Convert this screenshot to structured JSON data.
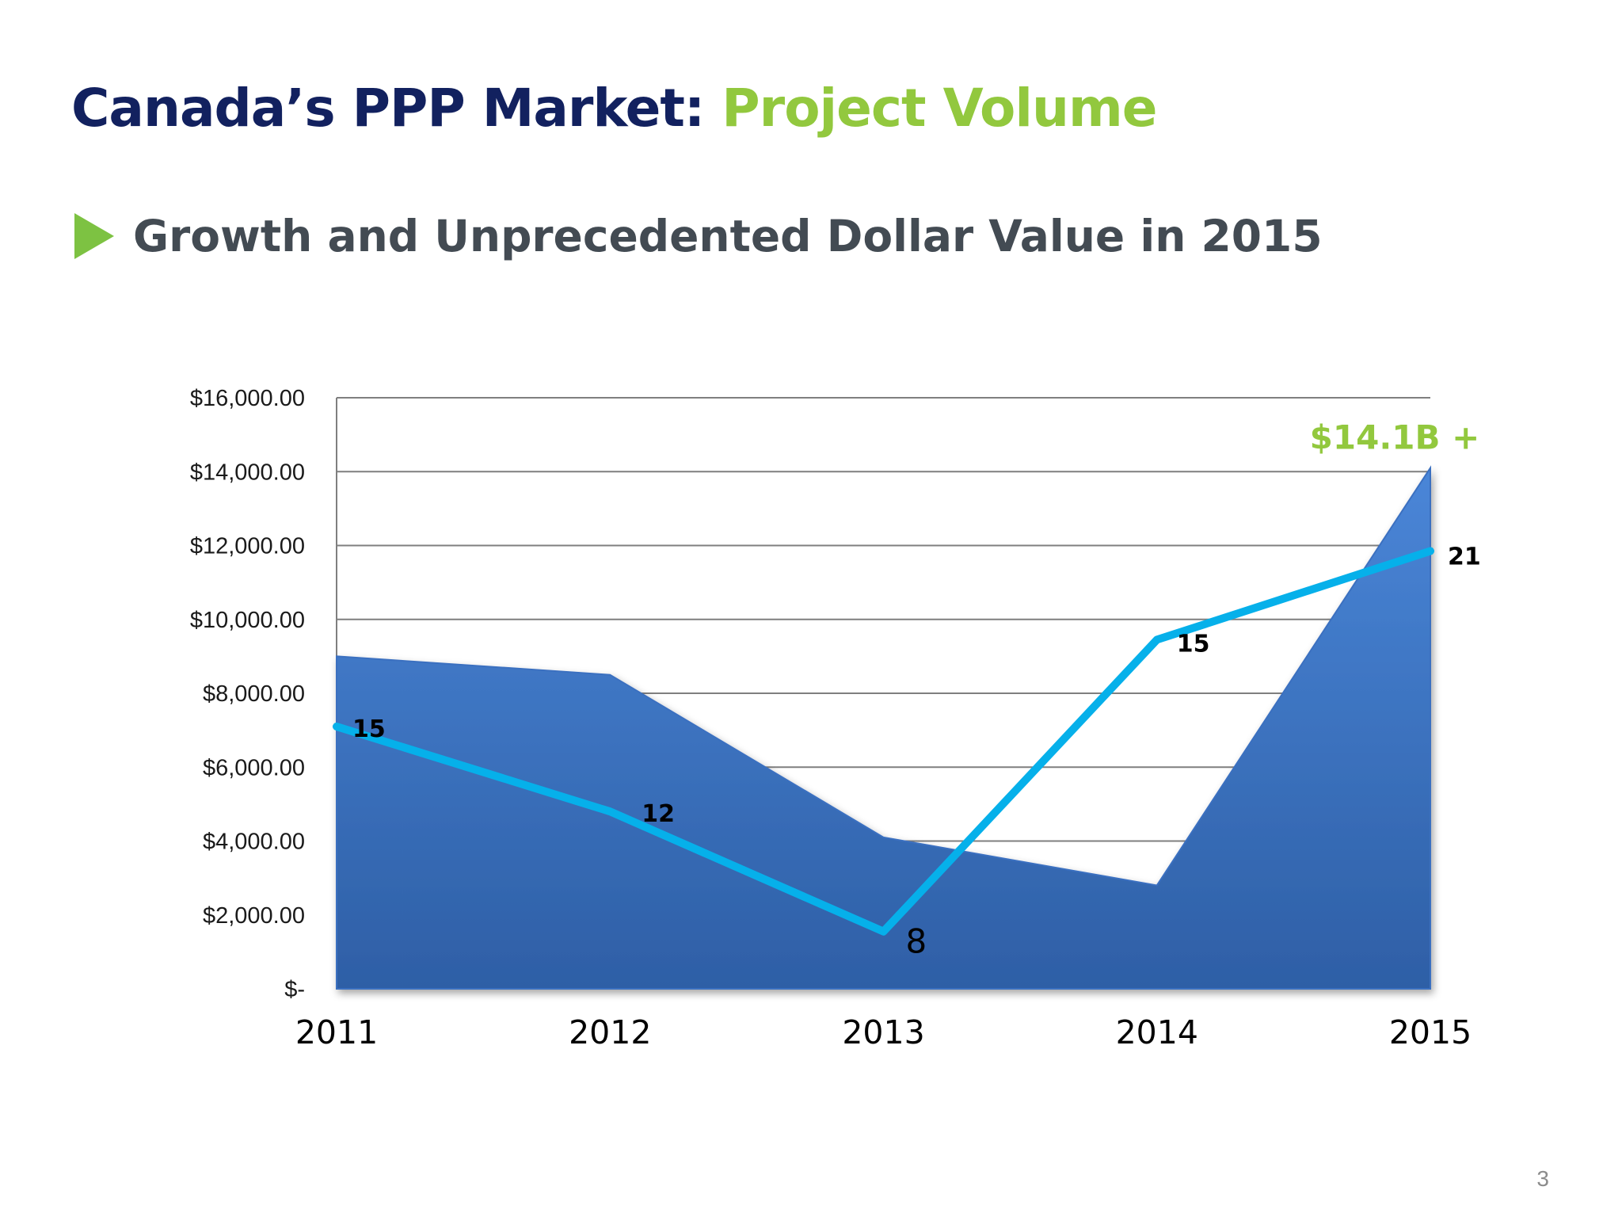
{
  "slide": {
    "title_main": "Canada’s PPP Market:",
    "title_accent": "Project Volume",
    "subtitle": "Growth and Unprecedented Dollar Value in 2015",
    "page_number": "3"
  },
  "colors": {
    "title_main": "#12215f",
    "title_accent": "#92c83e",
    "bullet": "#7dc242",
    "subtitle": "#434b53",
    "area_fill_top": "#4a86d8",
    "area_fill_bottom": "#2e5fa6",
    "line": "#06b0ea",
    "gridline": "#7f7f7f",
    "callout": "#92c83e"
  },
  "chart_data": {
    "type": "area",
    "categories": [
      "2011",
      "2012",
      "2013",
      "2014",
      "2015"
    ],
    "y_tick_labels": [
      "$-",
      "$2,000.00",
      "$4,000.00",
      "$6,000.00",
      "$8,000.00",
      "$10,000.00",
      "$12,000.00",
      "$14,000.00",
      "$16,000.00"
    ],
    "ylim": [
      0,
      16000
    ],
    "y_step": 2000,
    "grid": true,
    "series": [
      {
        "type": "area",
        "values": [
          9000,
          8500,
          4100,
          2800,
          14100
        ]
      },
      {
        "type": "line",
        "values": [
          15,
          12,
          8,
          15,
          21
        ],
        "plotted_values": [
          7100,
          4800,
          1550,
          9450,
          11850
        ],
        "data_labels": [
          "15",
          "12",
          "8",
          "15",
          "21"
        ]
      }
    ],
    "annotations": [
      {
        "text": "$14.1B +",
        "category": "2015",
        "value": 14100
      }
    ]
  }
}
